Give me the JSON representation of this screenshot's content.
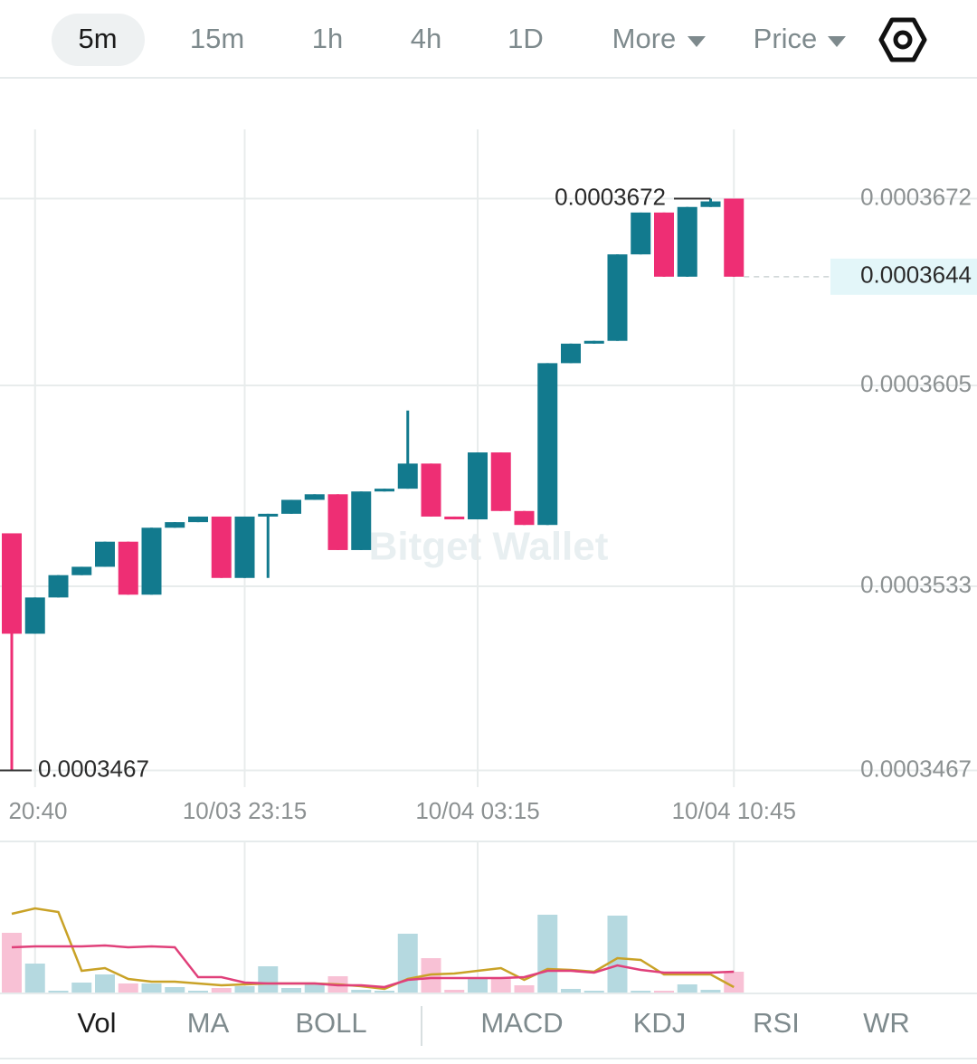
{
  "timeframe_tabs": [
    "5m",
    "15m",
    "1h",
    "4h",
    "1D",
    "More",
    "Price"
  ],
  "indicator_tabs": [
    "Vol",
    "MA",
    "BOLL",
    "MACD",
    "KDJ",
    "RSI",
    "WR"
  ],
  "watermark": "Bitget Wallet",
  "chart_data": {
    "type": "candlestick",
    "categories": [
      null,
      "20:40",
      null,
      null,
      null,
      null,
      null,
      null,
      null,
      null,
      "10/03 23:15",
      null,
      null,
      null,
      null,
      null,
      null,
      null,
      null,
      null,
      "10/04 03:15",
      null,
      null,
      null,
      null,
      null,
      null,
      null,
      null,
      null,
      null,
      "10/04 10:45"
    ],
    "open": [
      0.0003552,
      0.0003516,
      0.0003529,
      0.0003537,
      0.000354,
      0.0003549,
      0.000353,
      0.0003554,
      0.0003556,
      0.0003558,
      0.0003536,
      0.0003558,
      0.0003559,
      0.0003564,
      0.0003566,
      0.0003546,
      0.0003567,
      0.0003568,
      0.0003577,
      0.0003558,
      0.0003557,
      0.0003581,
      0.000356,
      0.0003555,
      0.0003613,
      0.000362,
      0.0003621,
      0.0003652,
      0.0003667,
      0.0003644,
      0.0003669,
      0.0003672
    ],
    "high": [
      0.0003552,
      0.0003529,
      0.0003537,
      0.000354,
      0.0003549,
      0.0003549,
      0.0003554,
      0.0003556,
      0.0003558,
      0.0003558,
      0.0003558,
      0.0003559,
      0.0003564,
      0.0003566,
      0.0003566,
      0.0003567,
      0.0003568,
      0.0003596,
      0.0003577,
      0.0003558,
      0.0003581,
      0.0003581,
      0.000356,
      0.0003613,
      0.000362,
      0.0003621,
      0.0003652,
      0.0003667,
      0.0003667,
      0.0003669,
      0.0003672,
      0.0003672
    ],
    "low": [
      0.0003467,
      0.0003516,
      0.0003529,
      0.0003537,
      0.000354,
      0.000353,
      0.000353,
      0.0003554,
      0.0003556,
      0.0003536,
      0.0003536,
      0.0003536,
      0.0003559,
      0.0003564,
      0.0003546,
      0.0003546,
      0.0003567,
      0.0003568,
      0.0003558,
      0.0003557,
      0.0003557,
      0.000356,
      0.0003555,
      0.0003555,
      0.0003613,
      0.000362,
      0.0003621,
      0.0003652,
      0.0003644,
      0.0003644,
      0.0003669,
      0.0003644
    ],
    "close": [
      0.0003516,
      0.0003529,
      0.0003537,
      0.000354,
      0.0003549,
      0.000353,
      0.0003554,
      0.0003556,
      0.0003558,
      0.0003536,
      0.0003558,
      0.0003559,
      0.0003564,
      0.0003566,
      0.0003546,
      0.0003567,
      0.0003568,
      0.0003577,
      0.0003558,
      0.0003557,
      0.0003581,
      0.000356,
      0.0003555,
      0.0003613,
      0.000362,
      0.0003621,
      0.0003652,
      0.0003667,
      0.0003644,
      0.0003669,
      0.0003671,
      0.0003644
    ],
    "up_color": "#127a8e",
    "down_color": "#ee2e74",
    "ylim": [
      0.0003461,
      0.0003678
    ],
    "yticks": [
      0.0003467,
      0.0003533,
      0.0003605,
      0.0003672
    ],
    "grid": true,
    "high_label": 0.0003672,
    "low_label": 0.0003467,
    "last_price": 0.0003644,
    "volume": {
      "values": [
        66,
        32,
        2,
        11,
        20,
        10,
        10,
        6,
        2,
        5,
        7,
        29,
        5,
        9,
        18,
        3,
        2,
        65,
        38,
        3,
        15,
        17,
        8,
        86,
        4,
        2,
        85,
        2,
        2,
        9,
        3,
        23
      ],
      "ylim": [
        0,
        100
      ],
      "up_color": "#b5d9e0",
      "down_color": "#f8c1d5",
      "lines": [
        {
          "color": "#c9a227",
          "values": [
            87,
            93,
            89,
            24,
            27,
            15,
            12,
            12,
            10,
            8,
            9,
            10,
            10,
            10,
            9,
            7,
            4,
            15,
            20,
            21,
            24,
            27,
            14,
            26,
            25,
            23,
            38,
            36,
            20,
            20,
            20,
            6
          ]
        },
        {
          "color": "#e0407a",
          "values": [
            50,
            51,
            51,
            51,
            52,
            50,
            51,
            50,
            17,
            17,
            11,
            10,
            10,
            10,
            8,
            8,
            6,
            14,
            16,
            16,
            16,
            16,
            17,
            24,
            24,
            22,
            30,
            25,
            22,
            22,
            22,
            23
          ]
        }
      ]
    }
  }
}
